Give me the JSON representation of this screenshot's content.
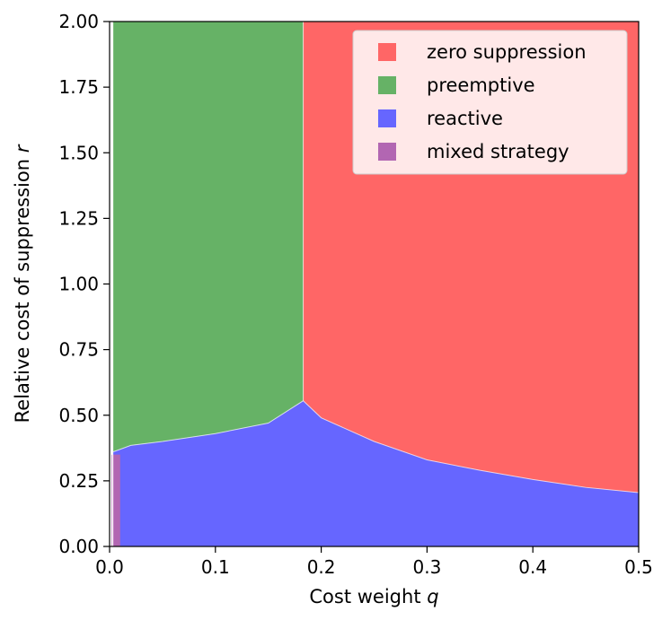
{
  "chart_data": {
    "type": "area",
    "title": "",
    "xlabel": "Cost weight",
    "xlabel_var": "q",
    "ylabel": "Relative cost of suppression",
    "ylabel_var": "r",
    "xlim": [
      0.0,
      0.5
    ],
    "ylim": [
      0.0,
      2.0
    ],
    "xticks": [
      0.0,
      0.1,
      0.2,
      0.3,
      0.4,
      0.5
    ],
    "xtick_labels": [
      "0.0",
      "0.1",
      "0.2",
      "0.3",
      "0.4",
      "0.5"
    ],
    "yticks": [
      0.0,
      0.25,
      0.5,
      0.75,
      1.0,
      1.25,
      1.5,
      1.75,
      2.0
    ],
    "ytick_labels": [
      "0.00",
      "0.25",
      "0.50",
      "0.75",
      "1.00",
      "1.25",
      "1.50",
      "1.75",
      "2.00"
    ],
    "grid": false,
    "legend_position": "top-right",
    "series": [
      {
        "name": "zero suppression",
        "color": "#ff6666"
      },
      {
        "name": "preemptive",
        "color": "#66b266"
      },
      {
        "name": "reactive",
        "color": "#6666ff"
      },
      {
        "name": "mixed strategy",
        "color": "#b266b2"
      }
    ],
    "preemptive_zero_boundary_q": 0.183,
    "reactive_upper_boundary": {
      "q": [
        0.003,
        0.01,
        0.02,
        0.05,
        0.1,
        0.15,
        0.183,
        0.2,
        0.25,
        0.3,
        0.35,
        0.4,
        0.45,
        0.5
      ],
      "r": [
        0.36,
        0.37,
        0.385,
        0.4,
        0.43,
        0.47,
        0.555,
        0.49,
        0.4,
        0.33,
        0.29,
        0.255,
        0.225,
        0.205
      ]
    },
    "mixed_strategy_region": {
      "q": [
        0.002,
        0.01
      ],
      "r": [
        0.0,
        0.35
      ]
    }
  }
}
